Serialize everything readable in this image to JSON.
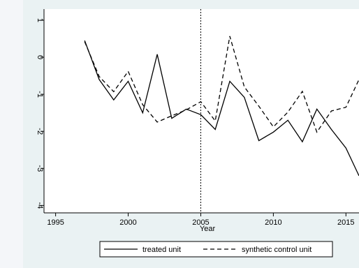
{
  "chart_data": {
    "type": "line",
    "xlabel": "Year",
    "ylabel": "",
    "xlim": [
      1994.2,
      2015.9
    ],
    "ylim": [
      -4.2,
      1.3
    ],
    "xticks": [
      1995,
      2000,
      2005,
      2010,
      2015
    ],
    "yticks": [
      1,
      0,
      -1,
      -2,
      -3,
      -4
    ],
    "xtick_labels": [
      "1995",
      "2000",
      "2005",
      "2010",
      "2015"
    ],
    "ytick_labels": [
      "1",
      "0",
      "-1",
      "-2",
      "-3",
      "-4"
    ],
    "vline_x": 2005,
    "grid": false,
    "legend_position": "bottom",
    "series": [
      {
        "name": "treated unit",
        "style": "solid",
        "color": "#000000",
        "x": [
          1997,
          1998,
          1999,
          2000,
          2001,
          2002,
          2003,
          2004,
          2005,
          2006,
          2007,
          2008,
          2009,
          2010,
          2011,
          2012,
          2013,
          2014,
          2015,
          2015.9
        ],
        "y": [
          0.45,
          -0.6,
          -1.15,
          -0.65,
          -1.5,
          0.08,
          -1.65,
          -1.4,
          -1.55,
          -1.95,
          -0.65,
          -1.08,
          -2.25,
          -2.02,
          -1.7,
          -2.28,
          -1.4,
          -1.95,
          -2.45,
          -3.2
        ]
      },
      {
        "name": "synthetic control unit",
        "style": "dashed",
        "color": "#000000",
        "x": [
          1997,
          1998,
          1999,
          2000,
          2001,
          2002,
          2003,
          2004,
          2005,
          2006,
          2007,
          2008,
          2009,
          2010,
          2011,
          2012,
          2013,
          2014,
          2015,
          2015.9
        ],
        "y": [
          0.42,
          -0.52,
          -0.93,
          -0.38,
          -1.28,
          -1.75,
          -1.58,
          -1.42,
          -1.2,
          -1.72,
          0.57,
          -0.8,
          -1.32,
          -1.88,
          -1.48,
          -0.92,
          -2.02,
          -1.45,
          -1.35,
          -0.6
        ]
      }
    ]
  }
}
